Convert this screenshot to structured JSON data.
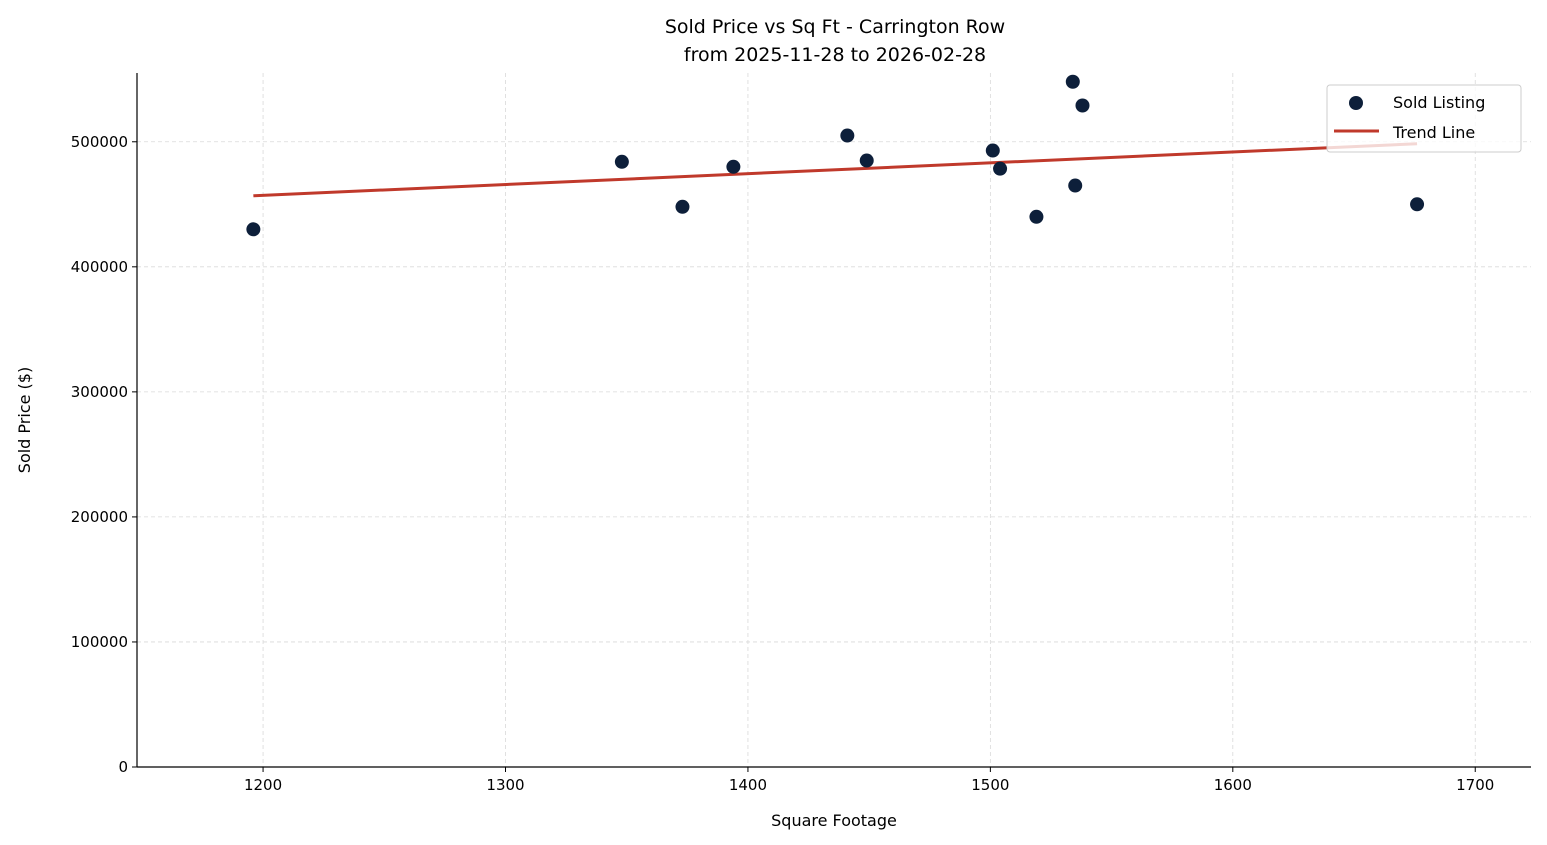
{
  "chart_data": {
    "type": "scatter",
    "title": "Sold Price vs Sq Ft - Carrington Row",
    "subtitle": "from 2025-11-28 to 2026-02-28",
    "xlabel": "Square Footage",
    "ylabel": "Sold Price ($)",
    "xlim": [
      1148,
      1723
    ],
    "ylim": [
      0,
      555000
    ],
    "xticks": [
      1200,
      1300,
      1400,
      1500,
      1600,
      1700
    ],
    "yticks": [
      0,
      100000,
      200000,
      300000,
      400000,
      500000
    ],
    "grid": true,
    "legend_position": "top-right",
    "series": [
      {
        "name": "Sold Listing",
        "kind": "scatter",
        "color": "#0d1f3a",
        "points": [
          [
            1196,
            430000
          ],
          [
            1348,
            484000
          ],
          [
            1373,
            448000
          ],
          [
            1394,
            480000
          ],
          [
            1441,
            505000
          ],
          [
            1449,
            485000
          ],
          [
            1501,
            493000
          ],
          [
            1504,
            478500
          ],
          [
            1519,
            440000
          ],
          [
            1534,
            548000
          ],
          [
            1535,
            465000
          ],
          [
            1538,
            529000
          ],
          [
            1676,
            450000
          ]
        ]
      },
      {
        "name": "Trend Line",
        "kind": "line",
        "color": "#c0392b",
        "points": [
          [
            1196,
            456800
          ],
          [
            1676,
            498400
          ]
        ]
      }
    ]
  }
}
